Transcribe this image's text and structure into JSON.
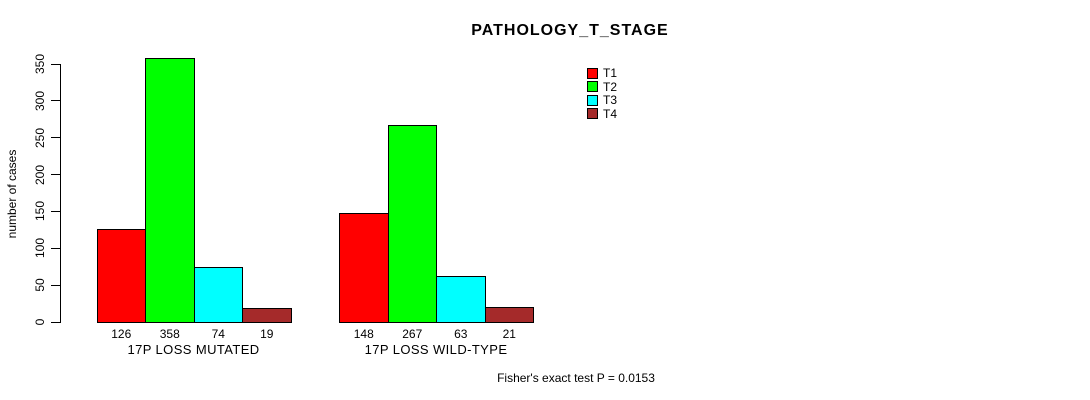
{
  "chart_data": {
    "type": "bar",
    "title": "PATHOLOGY_T_STAGE",
    "ylabel": "number of cases",
    "xlabel": "",
    "ylim": [
      0,
      380
    ],
    "yticks": [
      0,
      50,
      100,
      150,
      200,
      250,
      300,
      350
    ],
    "grid": false,
    "legend_position": "top-right",
    "categories": [
      "17P LOSS MUTATED",
      "17P LOSS WILD-TYPE"
    ],
    "series": [
      {
        "name": "T1",
        "color": "#ff0000",
        "values": [
          126,
          148
        ]
      },
      {
        "name": "T2",
        "color": "#00ff00",
        "values": [
          358,
          267
        ]
      },
      {
        "name": "T3",
        "color": "#00ffff",
        "values": [
          74,
          63
        ]
      },
      {
        "name": "T4",
        "color": "#a52a2a",
        "values": [
          19,
          21
        ]
      }
    ],
    "bar_value_labels_shown": true,
    "footnote": "Fisher's exact test P = 0.0153"
  },
  "colors": {
    "background": "#ffffff",
    "axis": "#000000",
    "text": "#000000"
  }
}
